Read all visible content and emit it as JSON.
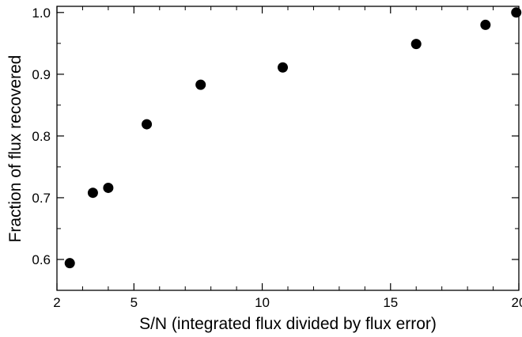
{
  "chart_data": {
    "type": "scatter",
    "title": "",
    "xlabel": "S/N (integrated flux divided by flux error)",
    "ylabel": "Fraction of flux recovered",
    "xlim": [
      2,
      20
    ],
    "ylim": [
      0.55,
      1.01
    ],
    "x_ticks": [
      2,
      5,
      10,
      15,
      20
    ],
    "x_tick_labels": [
      "2",
      "5",
      "10",
      "15",
      "20"
    ],
    "y_ticks": [
      0.6,
      0.7,
      0.8,
      0.9,
      1.0
    ],
    "y_tick_labels": [
      "0.6",
      "0.7",
      "0.8",
      "0.9",
      "1.0"
    ],
    "grid": false,
    "legend": "none",
    "marker_color": "#000000",
    "points": [
      {
        "x": 2.5,
        "y": 0.594
      },
      {
        "x": 3.4,
        "y": 0.708
      },
      {
        "x": 4.0,
        "y": 0.716
      },
      {
        "x": 5.5,
        "y": 0.819
      },
      {
        "x": 7.6,
        "y": 0.883
      },
      {
        "x": 10.8,
        "y": 0.911
      },
      {
        "x": 16.0,
        "y": 0.949
      },
      {
        "x": 18.7,
        "y": 0.98
      },
      {
        "x": 19.9,
        "y": 1.0
      }
    ]
  }
}
